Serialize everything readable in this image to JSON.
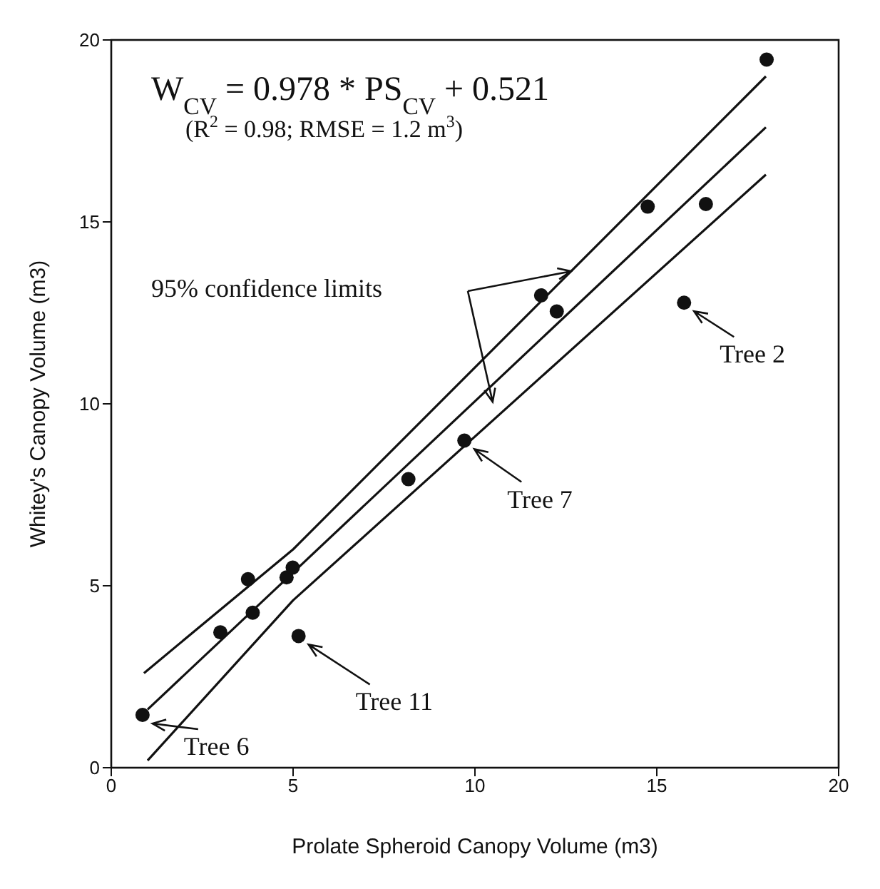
{
  "chart_data": {
    "type": "scatter",
    "xlabel": "Prolate Spheroid Canopy Volume (m3)",
    "ylabel": "Whitey's Canopy Volume (m3)",
    "xlim": [
      0,
      20
    ],
    "ylim": [
      0,
      20
    ],
    "xticks": [
      0,
      5,
      10,
      15,
      20
    ],
    "yticks": [
      0,
      5,
      10,
      15,
      20
    ],
    "marker": "circle",
    "series": [
      {
        "type": "scatter",
        "color": "#111111",
        "x": [
          0.86,
          3.0,
          3.76,
          3.89,
          4.82,
          4.99,
          5.15,
          8.17,
          9.71,
          11.82,
          12.25,
          14.75,
          16.35,
          15.75,
          18.02
        ],
        "values": [
          1.45,
          3.72,
          5.18,
          4.26,
          5.23,
          5.5,
          3.62,
          7.93,
          8.99,
          12.98,
          12.54,
          15.42,
          15.49,
          12.78,
          19.46
        ]
      },
      {
        "type": "line",
        "color": "#111111",
        "line_style": "solid",
        "marker": "none",
        "x": [
          1.0,
          18.0
        ],
        "values": [
          1.6,
          17.6
        ]
      },
      {
        "type": "line",
        "color": "#111111",
        "line_style": "solid",
        "marker": "none",
        "x": [
          0.9,
          5.0,
          18.0
        ],
        "values": [
          2.6,
          6.0,
          19.0
        ]
      },
      {
        "type": "line",
        "color": "#111111",
        "line_style": "solid",
        "marker": "none",
        "x": [
          1.0,
          5.0,
          18.0
        ],
        "values": [
          0.2,
          4.6,
          16.3
        ]
      }
    ],
    "annotations": [
      "W$_{CV}$ = 0.978 * PS$_{CV}$ + 0.521",
      "(R$^{2}$ = 0.98; RMSE = 1.2 m$^{3}$)",
      "95% confidence limits",
      {
        "text": "Tree 2",
        "x": 15.75,
        "y": 12.78
      },
      {
        "text": "Tree 7",
        "x": 9.71,
        "y": 8.99
      },
      {
        "text": "Tree 11",
        "x": 5.15,
        "y": 3.62
      },
      {
        "text": "Tree 6",
        "x": 0.86,
        "y": 1.45
      }
    ]
  }
}
